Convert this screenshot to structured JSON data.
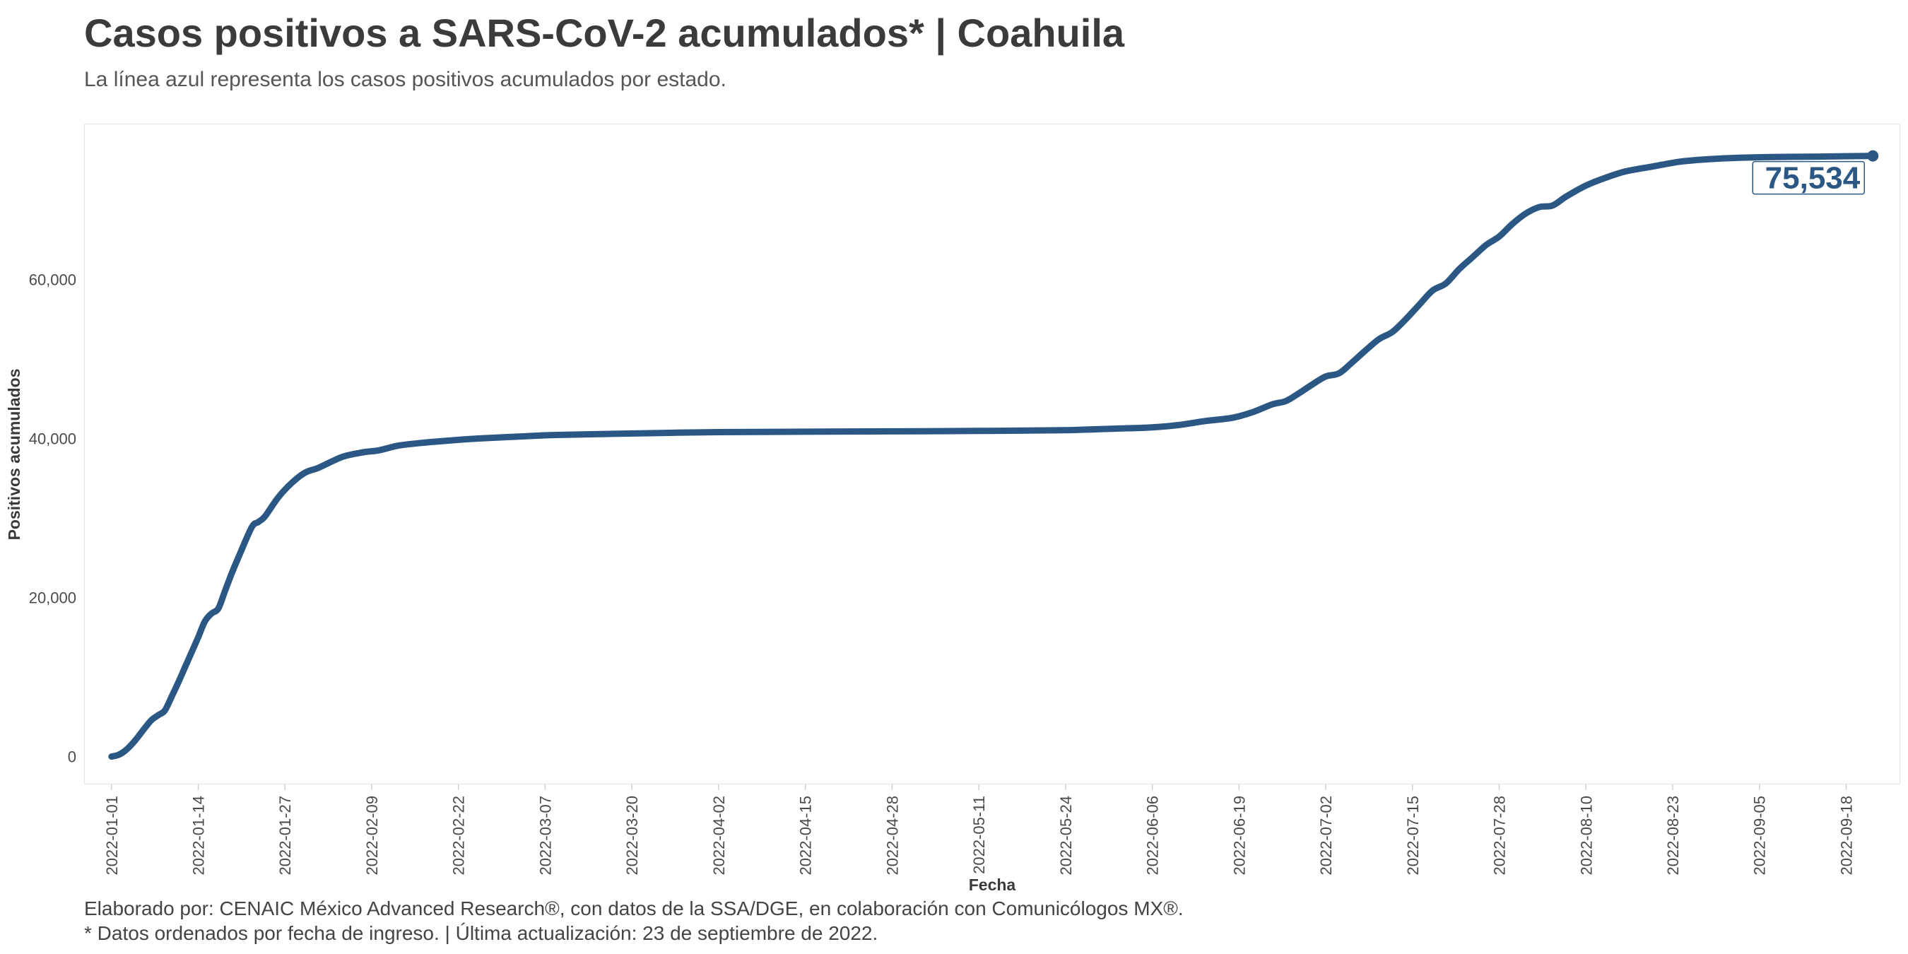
{
  "header": {
    "title": "Casos positivos a SARS-CoV-2 acumulados* | Coahuila",
    "subtitle": "La línea azul representa los casos positivos acumulados por estado."
  },
  "footer": {
    "caption_line1": "Elaborado por: CENAIC México Advanced Research®, con datos de la SSA/DGE, en colaboración con Comunicólogos MX®.",
    "caption_line2": "* Datos ordenados por fecha de ingreso. | Última actualización: 23 de septiembre de 2022."
  },
  "colors": {
    "line": "#2a5783",
    "grid": "#e2e2e2",
    "text": "#3a3a3a"
  },
  "chart_data": {
    "type": "line",
    "title": "Casos positivos a SARS-CoV-2 acumulados* | Coahuila",
    "subtitle": "La línea azul representa los casos positivos acumulados por estado.",
    "xlabel": "Fecha",
    "ylabel": "Positivos acumulados",
    "x_range": [
      "2021-12-28",
      "2022-09-26"
    ],
    "ylim": [
      -3500,
      79500
    ],
    "x_ticks": [
      "2022-01-01",
      "2022-01-14",
      "2022-01-27",
      "2022-02-09",
      "2022-02-22",
      "2022-03-07",
      "2022-03-20",
      "2022-04-02",
      "2022-04-15",
      "2022-04-28",
      "2022-05-11",
      "2022-05-24",
      "2022-06-06",
      "2022-06-19",
      "2022-07-02",
      "2022-07-15",
      "2022-07-28",
      "2022-08-10",
      "2022-08-23",
      "2022-09-05",
      "2022-09-18"
    ],
    "y_ticks": [
      0,
      20000,
      40000,
      60000
    ],
    "y_tick_labels": [
      "0",
      "20,000",
      "40,000",
      "60,000"
    ],
    "grid": false,
    "end_label": "75,534",
    "series": [
      {
        "x": [
          "2022-01-01",
          "2022-01-02",
          "2022-01-03",
          "2022-01-04",
          "2022-01-05",
          "2022-01-06",
          "2022-01-07",
          "2022-01-08",
          "2022-01-09",
          "2022-01-10",
          "2022-01-11",
          "2022-01-12",
          "2022-01-13",
          "2022-01-14",
          "2022-01-15",
          "2022-01-16",
          "2022-01-17",
          "2022-01-18",
          "2022-01-19",
          "2022-01-20",
          "2022-01-22",
          "2022-01-23",
          "2022-01-24",
          "2022-01-26",
          "2022-01-28",
          "2022-01-30",
          "2022-02-01",
          "2022-02-03",
          "2022-02-05",
          "2022-02-08",
          "2022-02-10",
          "2022-02-13",
          "2022-02-16",
          "2022-02-20",
          "2022-02-25",
          "2022-03-02",
          "2022-03-07",
          "2022-03-12",
          "2022-03-18",
          "2022-03-25",
          "2022-04-02",
          "2022-04-15",
          "2022-04-28",
          "2022-05-11",
          "2022-05-24",
          "2022-06-01",
          "2022-06-06",
          "2022-06-10",
          "2022-06-14",
          "2022-06-18",
          "2022-06-21",
          "2022-06-24",
          "2022-06-26",
          "2022-06-28",
          "2022-06-30",
          "2022-07-02",
          "2022-07-04",
          "2022-07-06",
          "2022-07-08",
          "2022-07-10",
          "2022-07-12",
          "2022-07-14",
          "2022-07-16",
          "2022-07-18",
          "2022-07-20",
          "2022-07-22",
          "2022-07-24",
          "2022-07-26",
          "2022-07-28",
          "2022-07-30",
          "2022-08-01",
          "2022-08-03",
          "2022-08-05",
          "2022-08-07",
          "2022-08-10",
          "2022-08-13",
          "2022-08-16",
          "2022-08-20",
          "2022-08-24",
          "2022-08-28",
          "2022-09-02",
          "2022-09-08",
          "2022-09-14",
          "2022-09-22"
        ],
        "y": [
          0,
          200,
          700,
          1500,
          2500,
          3600,
          4600,
          5200,
          5800,
          7500,
          9300,
          11200,
          13100,
          15000,
          17000,
          18000,
          18600,
          20800,
          23000,
          25000,
          28800,
          29500,
          30200,
          32600,
          34400,
          35700,
          36300,
          37100,
          37800,
          38300,
          38500,
          39100,
          39400,
          39700,
          40000,
          40200,
          40400,
          40500,
          40600,
          40700,
          40800,
          40850,
          40900,
          40950,
          41050,
          41250,
          41400,
          41700,
          42200,
          42600,
          43300,
          44300,
          44700,
          45700,
          46800,
          47800,
          48200,
          49600,
          51100,
          52500,
          53400,
          55000,
          56800,
          58600,
          59500,
          61300,
          62800,
          64300,
          65400,
          67000,
          68300,
          69100,
          69300,
          70400,
          71800,
          72800,
          73600,
          74200,
          74800,
          75100,
          75300,
          75400,
          75450,
          75534
        ]
      }
    ]
  }
}
